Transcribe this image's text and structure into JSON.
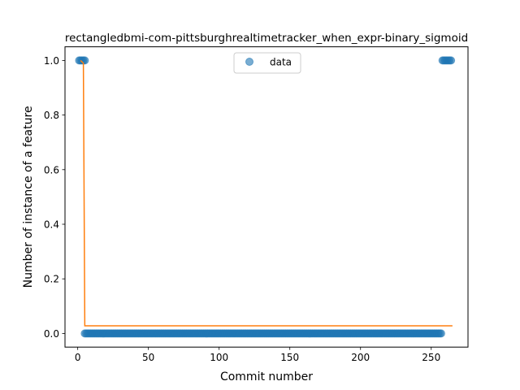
{
  "chart_data": {
    "type": "scatter",
    "title": "rectangledbmi-com-pittsburghrealtimetracker_when_expr-binary_sigmoid",
    "xlabel": "Commit number",
    "ylabel": "Number of instance of a feature",
    "xlim": [
      -9,
      276
    ],
    "ylim": [
      -0.05,
      1.05
    ],
    "xticks": [
      0,
      50,
      100,
      150,
      200,
      250
    ],
    "yticks": [
      0.0,
      0.2,
      0.4,
      0.6,
      0.8,
      1.0
    ],
    "xtick_labels": [
      "0",
      "50",
      "100",
      "150",
      "200",
      "250"
    ],
    "ytick_labels": [
      "0.0",
      "0.2",
      "0.4",
      "0.6",
      "0.8",
      "1.0"
    ],
    "grid": false,
    "legend": {
      "position": "top-center",
      "entries": [
        "data"
      ]
    },
    "series": [
      {
        "name": "data",
        "kind": "scatter",
        "color": "#1f77b4",
        "opacity": 0.6,
        "segments": [
          {
            "x_start": 1,
            "x_end": 5,
            "y": 1
          },
          {
            "x_start": 5,
            "x_end": 257,
            "y": 0
          },
          {
            "x_start": 258,
            "x_end": 264,
            "y": 1
          }
        ]
      },
      {
        "kind": "line",
        "color": "#ff7f0e",
        "points": [
          [
            2,
            1.0
          ],
          [
            4,
            0.99
          ],
          [
            5,
            0.028
          ],
          [
            265,
            0.028
          ]
        ]
      }
    ]
  }
}
